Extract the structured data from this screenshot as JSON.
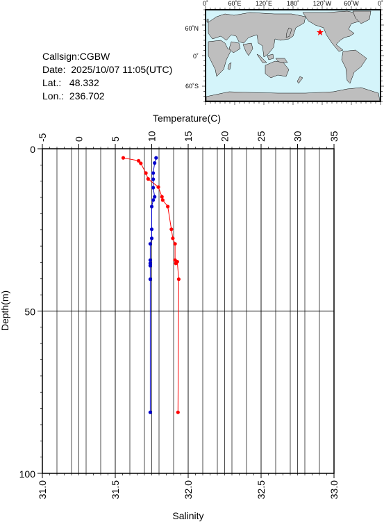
{
  "station": {
    "callsign_label": "Callsign:",
    "callsign": "CGBW",
    "date_label": "Date:",
    "date": "2025/10/07 11:05(UTC)",
    "lat_label": "Lat.:",
    "lat": "48.332",
    "lon_label": "Lon.:",
    "lon": "236.702"
  },
  "map": {
    "lon_ticks": [
      "0˚",
      "60˚E",
      "120˚E",
      "180˚",
      "120˚W",
      "60˚W",
      "0˚"
    ],
    "lat_ticks": [
      "60˚N",
      "0˚",
      "60˚S"
    ],
    "ocean_color": "#d4f4fa",
    "land_color": "#bebebe",
    "marker_color": "#ff0000",
    "marker_icon": "star-icon"
  },
  "chart_data": {
    "type": "line",
    "title": "",
    "top_axis_label": "Temperature(C)",
    "bottom_axis_label": "Salinity",
    "ylabel": "Depth(m)",
    "temperature_range": [
      -5,
      35
    ],
    "temperature_ticks": [
      "-5",
      "0",
      "5",
      "10",
      "15",
      "20",
      "25",
      "30",
      "35"
    ],
    "salinity_range": [
      31.0,
      33.0
    ],
    "salinity_ticks": [
      "31.0",
      "31.5",
      "32.0",
      "32.5",
      "33.0"
    ],
    "depth_range": [
      0,
      100
    ],
    "depth_ticks": [
      "0",
      "50",
      "100"
    ],
    "grid": true,
    "series": [
      {
        "axis": "temperature",
        "color": "#ff0000",
        "points": [
          [
            6.1,
            2.8
          ],
          [
            8.2,
            3.7
          ],
          [
            8.5,
            4.5
          ],
          [
            9.2,
            7.5
          ],
          [
            9.5,
            9.3
          ],
          [
            10.9,
            11.8
          ],
          [
            11.4,
            14.8
          ],
          [
            11.5,
            15.8
          ],
          [
            12.2,
            17.8
          ],
          [
            12.7,
            24.8
          ],
          [
            12.9,
            27.6
          ],
          [
            13.2,
            29.3
          ],
          [
            13.2,
            34.3
          ],
          [
            13.3,
            35.3
          ],
          [
            13.5,
            34.8
          ],
          [
            13.7,
            40.2
          ],
          [
            13.6,
            81.2
          ]
        ]
      },
      {
        "axis": "salinity",
        "color": "#0000cd",
        "points": [
          [
            31.78,
            2.8
          ],
          [
            31.77,
            4.4
          ],
          [
            31.76,
            7.5
          ],
          [
            31.76,
            9.4
          ],
          [
            31.76,
            12.0
          ],
          [
            31.77,
            14.8
          ],
          [
            31.76,
            15.8
          ],
          [
            31.75,
            17.8
          ],
          [
            31.75,
            24.8
          ],
          [
            31.75,
            27.6
          ],
          [
            31.74,
            29.3
          ],
          [
            31.74,
            34.3
          ],
          [
            31.74,
            35.3
          ],
          [
            31.74,
            36.0
          ],
          [
            31.74,
            40.2
          ],
          [
            31.74,
            81.2
          ]
        ]
      }
    ]
  }
}
